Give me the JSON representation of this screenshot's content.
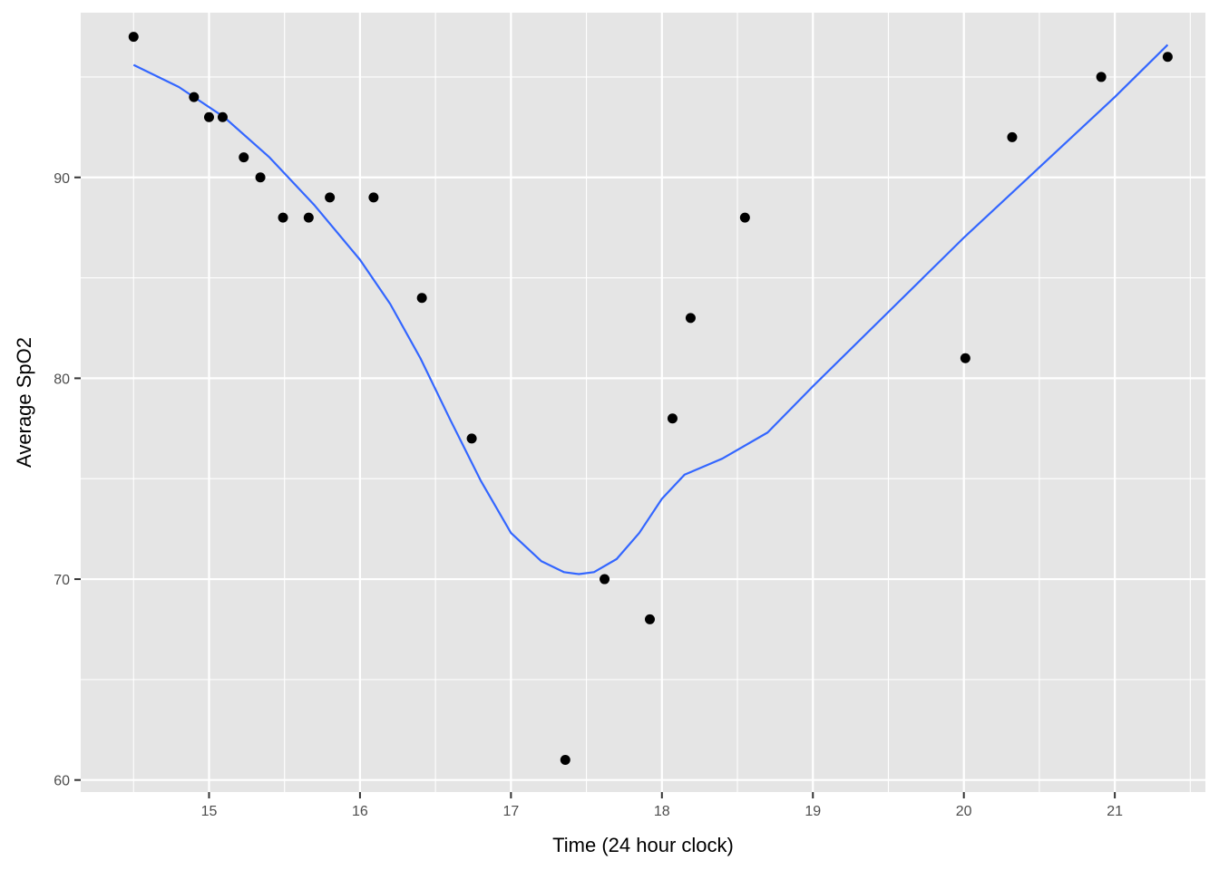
{
  "chart_data": {
    "type": "scatter",
    "title": "",
    "xlabel": "Time (24 hour clock)",
    "ylabel": "Average SpO2",
    "xlim": [
      14.15,
      21.6
    ],
    "ylim": [
      59.4,
      98.2
    ],
    "x_ticks": [
      15,
      16,
      17,
      18,
      19,
      20,
      21
    ],
    "y_ticks": [
      60,
      70,
      80,
      90
    ],
    "grid": true,
    "legend": "none",
    "colors": {
      "panel_background": "#e5e5e5",
      "grid": "#ffffff",
      "points": "#000000",
      "smooth_line": "#3366ff"
    },
    "points": [
      {
        "x": 14.5,
        "y": 97
      },
      {
        "x": 14.9,
        "y": 94
      },
      {
        "x": 15.0,
        "y": 93
      },
      {
        "x": 15.09,
        "y": 93
      },
      {
        "x": 15.23,
        "y": 91
      },
      {
        "x": 15.34,
        "y": 90
      },
      {
        "x": 15.49,
        "y": 88
      },
      {
        "x": 15.66,
        "y": 88
      },
      {
        "x": 15.8,
        "y": 89
      },
      {
        "x": 16.09,
        "y": 89
      },
      {
        "x": 16.41,
        "y": 84
      },
      {
        "x": 16.74,
        "y": 77
      },
      {
        "x": 17.36,
        "y": 61
      },
      {
        "x": 17.62,
        "y": 70
      },
      {
        "x": 17.92,
        "y": 68
      },
      {
        "x": 18.07,
        "y": 78
      },
      {
        "x": 18.19,
        "y": 83
      },
      {
        "x": 18.55,
        "y": 88
      },
      {
        "x": 20.01,
        "y": 81
      },
      {
        "x": 20.32,
        "y": 92
      },
      {
        "x": 20.91,
        "y": 95
      },
      {
        "x": 21.35,
        "y": 96
      }
    ],
    "smooth": [
      {
        "x": 14.5,
        "y": 95.6
      },
      {
        "x": 14.8,
        "y": 94.5
      },
      {
        "x": 15.1,
        "y": 93.0
      },
      {
        "x": 15.4,
        "y": 91.0
      },
      {
        "x": 15.7,
        "y": 88.6
      },
      {
        "x": 16.0,
        "y": 85.9
      },
      {
        "x": 16.2,
        "y": 83.7
      },
      {
        "x": 16.4,
        "y": 81.0
      },
      {
        "x": 16.6,
        "y": 77.9
      },
      {
        "x": 16.8,
        "y": 74.9
      },
      {
        "x": 17.0,
        "y": 72.3
      },
      {
        "x": 17.2,
        "y": 70.9
      },
      {
        "x": 17.35,
        "y": 70.35
      },
      {
        "x": 17.45,
        "y": 70.25
      },
      {
        "x": 17.55,
        "y": 70.35
      },
      {
        "x": 17.7,
        "y": 71.0
      },
      {
        "x": 17.85,
        "y": 72.3
      },
      {
        "x": 18.0,
        "y": 74.0
      },
      {
        "x": 18.15,
        "y": 75.2
      },
      {
        "x": 18.4,
        "y": 76.0
      },
      {
        "x": 18.7,
        "y": 77.3
      },
      {
        "x": 19.0,
        "y": 79.6
      },
      {
        "x": 19.5,
        "y": 83.3
      },
      {
        "x": 20.0,
        "y": 87.0
      },
      {
        "x": 20.5,
        "y": 90.5
      },
      {
        "x": 21.0,
        "y": 94.0
      },
      {
        "x": 21.35,
        "y": 96.6
      }
    ]
  }
}
